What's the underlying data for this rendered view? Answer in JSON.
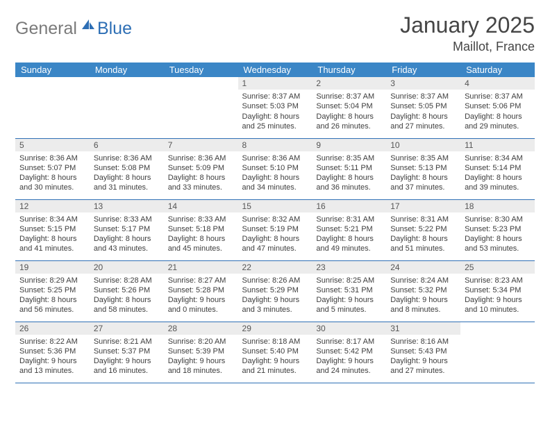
{
  "logo": {
    "general": "General",
    "blue": "Blue"
  },
  "title": "January 2025",
  "location": "Maillot, France",
  "colors": {
    "header_bg": "#3b86c6",
    "header_fg": "#ffffff",
    "daynum_bg": "#ececec",
    "row_border": "#2e6fb5",
    "logo_gray": "#7a7a7a",
    "logo_blue": "#2e6fb5"
  },
  "weekdays": [
    "Sunday",
    "Monday",
    "Tuesday",
    "Wednesday",
    "Thursday",
    "Friday",
    "Saturday"
  ],
  "weeks": [
    [
      {
        "n": "",
        "l1": "",
        "l2": "",
        "l3": "",
        "l4": ""
      },
      {
        "n": "",
        "l1": "",
        "l2": "",
        "l3": "",
        "l4": ""
      },
      {
        "n": "",
        "l1": "",
        "l2": "",
        "l3": "",
        "l4": ""
      },
      {
        "n": "1",
        "l1": "Sunrise: 8:37 AM",
        "l2": "Sunset: 5:03 PM",
        "l3": "Daylight: 8 hours",
        "l4": "and 25 minutes."
      },
      {
        "n": "2",
        "l1": "Sunrise: 8:37 AM",
        "l2": "Sunset: 5:04 PM",
        "l3": "Daylight: 8 hours",
        "l4": "and 26 minutes."
      },
      {
        "n": "3",
        "l1": "Sunrise: 8:37 AM",
        "l2": "Sunset: 5:05 PM",
        "l3": "Daylight: 8 hours",
        "l4": "and 27 minutes."
      },
      {
        "n": "4",
        "l1": "Sunrise: 8:37 AM",
        "l2": "Sunset: 5:06 PM",
        "l3": "Daylight: 8 hours",
        "l4": "and 29 minutes."
      }
    ],
    [
      {
        "n": "5",
        "l1": "Sunrise: 8:36 AM",
        "l2": "Sunset: 5:07 PM",
        "l3": "Daylight: 8 hours",
        "l4": "and 30 minutes."
      },
      {
        "n": "6",
        "l1": "Sunrise: 8:36 AM",
        "l2": "Sunset: 5:08 PM",
        "l3": "Daylight: 8 hours",
        "l4": "and 31 minutes."
      },
      {
        "n": "7",
        "l1": "Sunrise: 8:36 AM",
        "l2": "Sunset: 5:09 PM",
        "l3": "Daylight: 8 hours",
        "l4": "and 33 minutes."
      },
      {
        "n": "8",
        "l1": "Sunrise: 8:36 AM",
        "l2": "Sunset: 5:10 PM",
        "l3": "Daylight: 8 hours",
        "l4": "and 34 minutes."
      },
      {
        "n": "9",
        "l1": "Sunrise: 8:35 AM",
        "l2": "Sunset: 5:11 PM",
        "l3": "Daylight: 8 hours",
        "l4": "and 36 minutes."
      },
      {
        "n": "10",
        "l1": "Sunrise: 8:35 AM",
        "l2": "Sunset: 5:13 PM",
        "l3": "Daylight: 8 hours",
        "l4": "and 37 minutes."
      },
      {
        "n": "11",
        "l1": "Sunrise: 8:34 AM",
        "l2": "Sunset: 5:14 PM",
        "l3": "Daylight: 8 hours",
        "l4": "and 39 minutes."
      }
    ],
    [
      {
        "n": "12",
        "l1": "Sunrise: 8:34 AM",
        "l2": "Sunset: 5:15 PM",
        "l3": "Daylight: 8 hours",
        "l4": "and 41 minutes."
      },
      {
        "n": "13",
        "l1": "Sunrise: 8:33 AM",
        "l2": "Sunset: 5:17 PM",
        "l3": "Daylight: 8 hours",
        "l4": "and 43 minutes."
      },
      {
        "n": "14",
        "l1": "Sunrise: 8:33 AM",
        "l2": "Sunset: 5:18 PM",
        "l3": "Daylight: 8 hours",
        "l4": "and 45 minutes."
      },
      {
        "n": "15",
        "l1": "Sunrise: 8:32 AM",
        "l2": "Sunset: 5:19 PM",
        "l3": "Daylight: 8 hours",
        "l4": "and 47 minutes."
      },
      {
        "n": "16",
        "l1": "Sunrise: 8:31 AM",
        "l2": "Sunset: 5:21 PM",
        "l3": "Daylight: 8 hours",
        "l4": "and 49 minutes."
      },
      {
        "n": "17",
        "l1": "Sunrise: 8:31 AM",
        "l2": "Sunset: 5:22 PM",
        "l3": "Daylight: 8 hours",
        "l4": "and 51 minutes."
      },
      {
        "n": "18",
        "l1": "Sunrise: 8:30 AM",
        "l2": "Sunset: 5:23 PM",
        "l3": "Daylight: 8 hours",
        "l4": "and 53 minutes."
      }
    ],
    [
      {
        "n": "19",
        "l1": "Sunrise: 8:29 AM",
        "l2": "Sunset: 5:25 PM",
        "l3": "Daylight: 8 hours",
        "l4": "and 56 minutes."
      },
      {
        "n": "20",
        "l1": "Sunrise: 8:28 AM",
        "l2": "Sunset: 5:26 PM",
        "l3": "Daylight: 8 hours",
        "l4": "and 58 minutes."
      },
      {
        "n": "21",
        "l1": "Sunrise: 8:27 AM",
        "l2": "Sunset: 5:28 PM",
        "l3": "Daylight: 9 hours",
        "l4": "and 0 minutes."
      },
      {
        "n": "22",
        "l1": "Sunrise: 8:26 AM",
        "l2": "Sunset: 5:29 PM",
        "l3": "Daylight: 9 hours",
        "l4": "and 3 minutes."
      },
      {
        "n": "23",
        "l1": "Sunrise: 8:25 AM",
        "l2": "Sunset: 5:31 PM",
        "l3": "Daylight: 9 hours",
        "l4": "and 5 minutes."
      },
      {
        "n": "24",
        "l1": "Sunrise: 8:24 AM",
        "l2": "Sunset: 5:32 PM",
        "l3": "Daylight: 9 hours",
        "l4": "and 8 minutes."
      },
      {
        "n": "25",
        "l1": "Sunrise: 8:23 AM",
        "l2": "Sunset: 5:34 PM",
        "l3": "Daylight: 9 hours",
        "l4": "and 10 minutes."
      }
    ],
    [
      {
        "n": "26",
        "l1": "Sunrise: 8:22 AM",
        "l2": "Sunset: 5:36 PM",
        "l3": "Daylight: 9 hours",
        "l4": "and 13 minutes."
      },
      {
        "n": "27",
        "l1": "Sunrise: 8:21 AM",
        "l2": "Sunset: 5:37 PM",
        "l3": "Daylight: 9 hours",
        "l4": "and 16 minutes."
      },
      {
        "n": "28",
        "l1": "Sunrise: 8:20 AM",
        "l2": "Sunset: 5:39 PM",
        "l3": "Daylight: 9 hours",
        "l4": "and 18 minutes."
      },
      {
        "n": "29",
        "l1": "Sunrise: 8:18 AM",
        "l2": "Sunset: 5:40 PM",
        "l3": "Daylight: 9 hours",
        "l4": "and 21 minutes."
      },
      {
        "n": "30",
        "l1": "Sunrise: 8:17 AM",
        "l2": "Sunset: 5:42 PM",
        "l3": "Daylight: 9 hours",
        "l4": "and 24 minutes."
      },
      {
        "n": "31",
        "l1": "Sunrise: 8:16 AM",
        "l2": "Sunset: 5:43 PM",
        "l3": "Daylight: 9 hours",
        "l4": "and 27 minutes."
      },
      {
        "n": "",
        "l1": "",
        "l2": "",
        "l3": "",
        "l4": ""
      }
    ]
  ]
}
